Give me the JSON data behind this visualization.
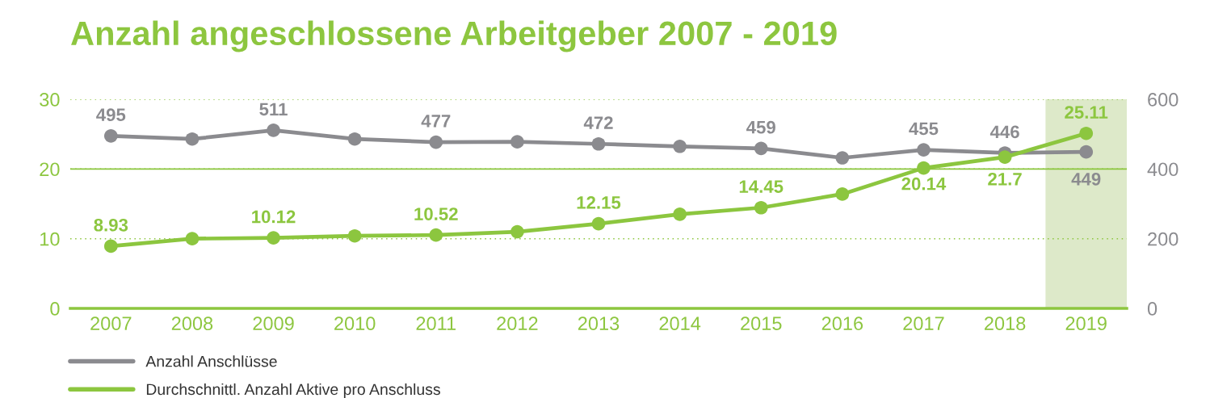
{
  "chart_data": {
    "type": "line",
    "title": "Anzahl angeschlossene Arbeitgeber 2007 - 2019",
    "categories": [
      "2007",
      "2008",
      "2009",
      "2010",
      "2011",
      "2012",
      "2013",
      "2014",
      "2015",
      "2016",
      "2017",
      "2018",
      "2019"
    ],
    "series": [
      {
        "name": "Anzahl Anschlüsse",
        "color": "#8b8b8f",
        "axis": "y2",
        "values": [
          495,
          486,
          511,
          486,
          477,
          478,
          472,
          465,
          459,
          432,
          455,
          446,
          449
        ],
        "value_labels": [
          "495",
          null,
          "511",
          null,
          "477",
          null,
          "472",
          null,
          "459",
          null,
          "455",
          "446",
          "449"
        ]
      },
      {
        "name": "Durchschnittl. Anzahl Aktive pro Anschluss",
        "color": "#8cc63f",
        "values": [
          8.93,
          10.0,
          10.12,
          10.4,
          10.52,
          11.0,
          12.15,
          13.5,
          14.45,
          16.4,
          20.14,
          21.7,
          25.11
        ],
        "value_labels": [
          "8.93",
          null,
          "10.12",
          null,
          "10.52",
          null,
          "12.15",
          null,
          "14.45",
          null,
          "20.14",
          "21.7",
          "25.11"
        ]
      }
    ],
    "ylim": [
      0,
      30
    ],
    "yticks": [
      0,
      10,
      20,
      30
    ],
    "y2lim": [
      0,
      600
    ],
    "y2ticks": [
      0,
      200,
      400,
      600
    ],
    "grid": "y",
    "marker": "circle",
    "legend": "bottom left",
    "ref_lines": [
      {
        "axis": "y",
        "value": 20,
        "line_style": "solid",
        "color": "#8cc63f"
      }
    ],
    "bands": [
      {
        "axis": "x",
        "from": "2019",
        "to": "2019",
        "color": "#dde9c9"
      }
    ]
  }
}
